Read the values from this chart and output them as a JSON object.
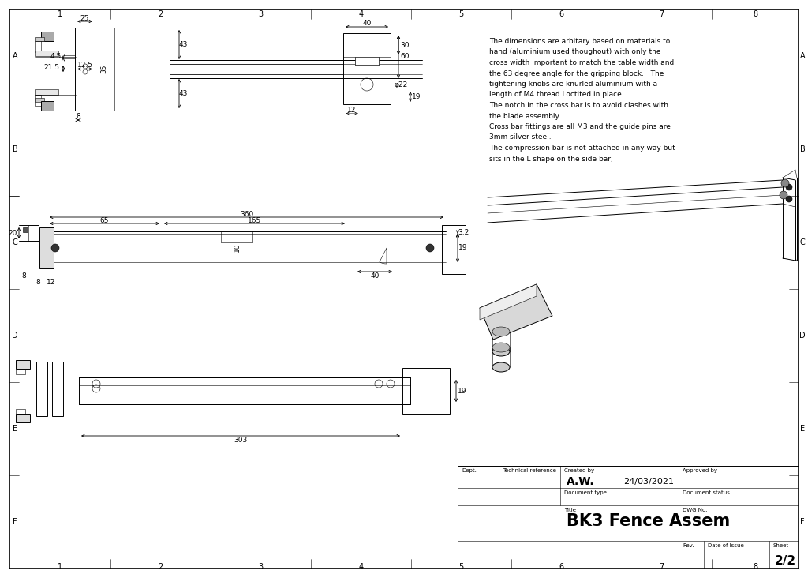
{
  "bg_color": "#ffffff",
  "line_color": "#000000",
  "notes": [
    "The dimensions are arbitary based on materials to",
    "hand (aluminium used thoughout) with only the",
    "cross width important to match the table width and",
    "the 63 degree angle for the gripping block.   The",
    "tightening knobs are knurled aluminium with a",
    "length of M4 thread Loctited in place.",
    "The notch in the cross bar is to avoid clashes with",
    "the blade assembly.",
    "Cross bar fittings are all M3 and the guide pins are",
    "3mm silver steel.",
    "The compression bar is not attached in any way but",
    "sits in the L shape on the side bar,"
  ],
  "row_labels": [
    "A",
    "B",
    "C",
    "D",
    "E",
    "F"
  ],
  "col_count": 8
}
